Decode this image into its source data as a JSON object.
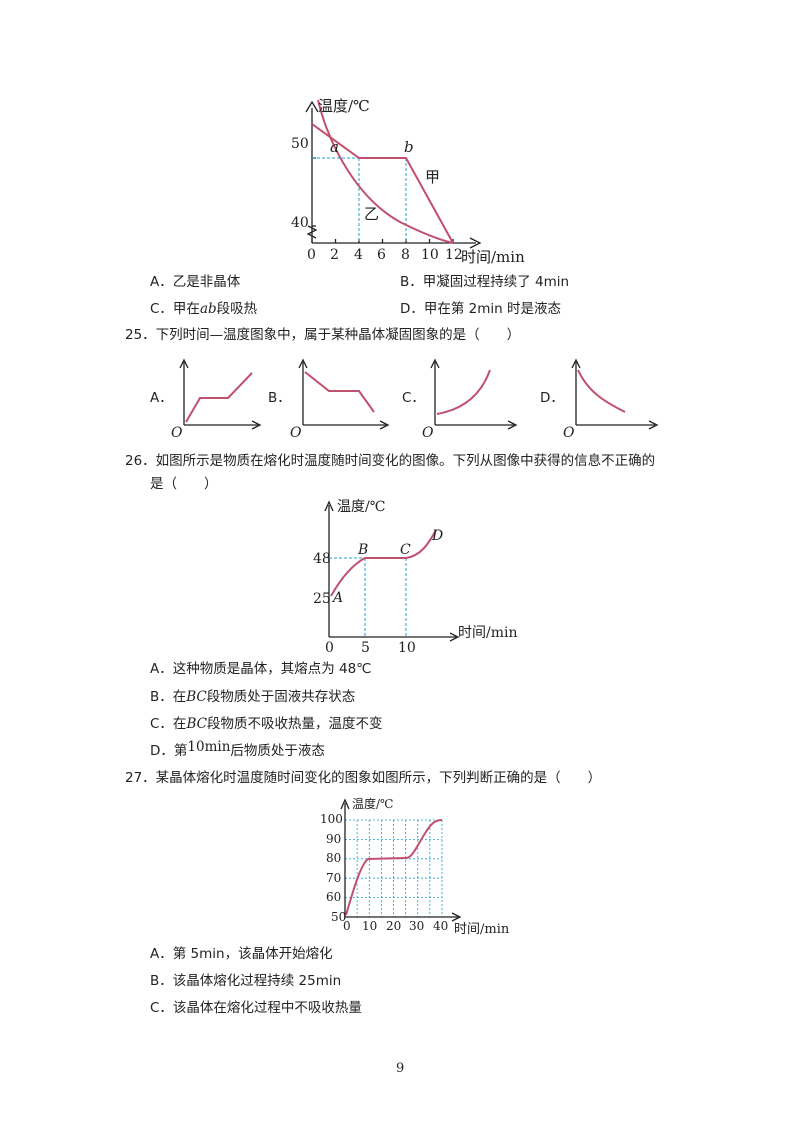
{
  "colors": {
    "curve": "#c0506e",
    "guide": "#1aa0d8",
    "axis": "#222222"
  },
  "chart_data": [
    {
      "type": "line",
      "ylabel": "温度/℃",
      "xlabel": "时间/min",
      "xticks": [
        "0",
        "2",
        "4",
        "6",
        "8",
        "10",
        "12"
      ],
      "yticks": [
        "40",
        "50"
      ],
      "xlim": [
        0,
        12
      ],
      "ylim": [
        40,
        50
      ],
      "point_labels": [
        "a",
        "b"
      ],
      "series": [
        {
          "name": "甲",
          "x": [
            0,
            4,
            8,
            12
          ],
          "y": [
            52,
            48,
            48,
            40
          ]
        },
        {
          "name": "乙",
          "x": [
            0,
            2,
            4,
            6,
            8,
            10,
            12
          ],
          "y": [
            54,
            47.2,
            44.5,
            42.6,
            41.4,
            40.6,
            40
          ]
        }
      ]
    },
    {
      "type": "line",
      "ylabel": "温度/℃",
      "xlabel": "时间/min",
      "xticks": [
        "0",
        "5",
        "10"
      ],
      "yticks": [
        "25",
        "48"
      ],
      "xlim": [
        0,
        15
      ],
      "ylim": [
        20,
        60
      ],
      "point_labels": [
        "A",
        "B",
        "C",
        "D"
      ],
      "series": [
        {
          "x": [
            0,
            5,
            10,
            13
          ],
          "y": [
            25,
            48,
            48,
            58
          ]
        }
      ]
    },
    {
      "type": "line",
      "ylabel": "温度/℃",
      "xlabel": "时间/min",
      "xticks": [
        "0",
        "10",
        "20",
        "30",
        "40"
      ],
      "yticks": [
        "50",
        "60",
        "70",
        "80",
        "90",
        "100"
      ],
      "xlim": [
        0,
        40
      ],
      "ylim": [
        50,
        100
      ],
      "series": [
        {
          "x": [
            0,
            5,
            10,
            25,
            30,
            35,
            40
          ],
          "y": [
            50,
            70,
            80,
            80,
            85,
            100,
            100
          ]
        }
      ]
    }
  ],
  "q24_options": {
    "a": "A．乙是非晶体",
    "b": "B．甲凝固过程持续了 4min",
    "c_prefix": "C．甲在",
    "c_var": "ab",
    "c_suffix": "段吸热",
    "d": "D．甲在第 2min 时是液态"
  },
  "q25": {
    "stem": "25．下列时间—温度图象中，属于某种晶体凝固图象的是（　　）",
    "labels": [
      "A．",
      "B．",
      "C．",
      "D．"
    ],
    "origin": "O"
  },
  "q26": {
    "stem_line1": "26．如图所示是物质在熔化时温度随时间变化的图像。下列从图像中获得的信息不正确的",
    "stem_line2": "是（　　）",
    "opt_a": "A．这种物质是晶体，其熔点为 48℃",
    "opt_b_prefix": "B．在",
    "opt_b_var": "BC",
    "opt_b_suffix": "段物质处于固液共存状态",
    "opt_c_prefix": "C．在",
    "opt_c_var": "BC",
    "opt_c_suffix": "段物质不吸收热量，温度不变",
    "opt_d_prefix": "D．第",
    "opt_d_var": "10min",
    "opt_d_suffix": "后物质处于液态"
  },
  "q27": {
    "stem": "27．某晶体熔化时温度随时间变化的图象如图所示，下列判断正确的是（　　）",
    "opt_a": "A．第 5min，该晶体开始熔化",
    "opt_b": "B．该晶体熔化过程持续 25min",
    "opt_c": "C．该晶体在熔化过程中不吸收热量"
  },
  "page_number": "9"
}
